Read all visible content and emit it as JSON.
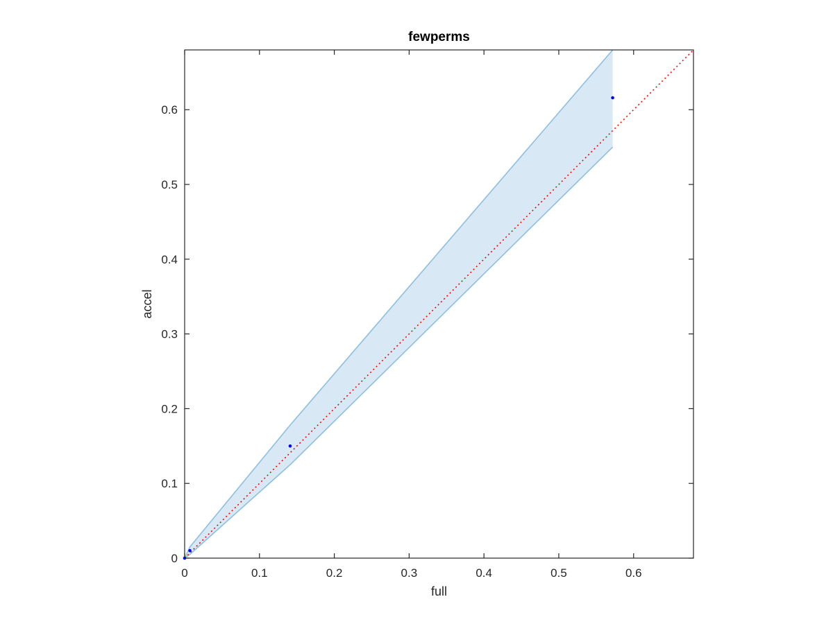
{
  "chart_data": {
    "type": "scatter",
    "title": "fewperms",
    "xlabel": "full",
    "ylabel": "accel",
    "xlim": [
      0,
      0.68
    ],
    "ylim": [
      0,
      0.68
    ],
    "xticks": [
      0,
      0.1,
      0.2,
      0.3,
      0.4,
      0.5,
      0.6
    ],
    "xtick_labels": [
      "0",
      "0.1",
      "0.2",
      "0.3",
      "0.4",
      "0.5",
      "0.6"
    ],
    "yticks": [
      0,
      0.1,
      0.2,
      0.3,
      0.4,
      0.5,
      0.6
    ],
    "ytick_labels": [
      "0",
      "0.1",
      "0.2",
      "0.3",
      "0.4",
      "0.5",
      "0.6"
    ],
    "grid": false,
    "series": [
      {
        "kind": "points",
        "color": "#0000ff",
        "x": [
          0.0,
          0.007,
          0.141,
          0.572
        ],
        "y": [
          0.0,
          0.01,
          0.15,
          0.616
        ]
      }
    ],
    "band": {
      "color_fill": "#d9e8f5",
      "color_edge": "#8dbfe0",
      "x": [
        0.0,
        0.007,
        0.141,
        0.572
      ],
      "upper": [
        0.0,
        0.015,
        0.178,
        0.68
      ],
      "lower": [
        0.0,
        0.005,
        0.125,
        0.55
      ]
    },
    "reference_line": {
      "style": "dotted",
      "color": "#ff0000",
      "x": [
        0,
        0.68
      ],
      "y": [
        0,
        0.68
      ]
    }
  }
}
